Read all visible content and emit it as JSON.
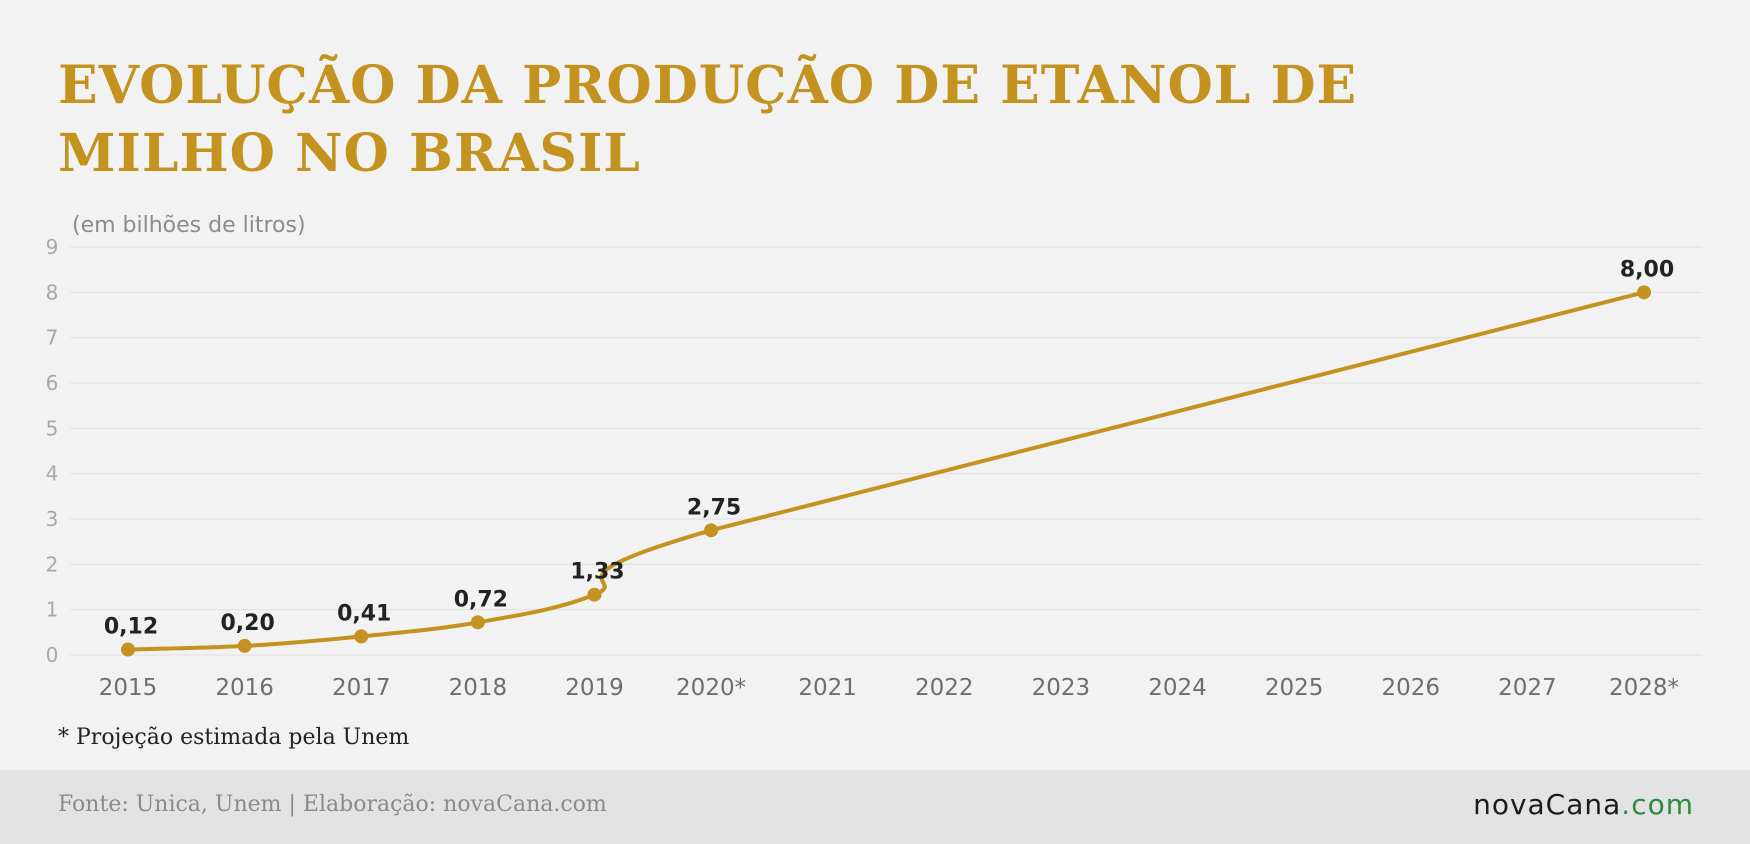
{
  "title": "EVOLUÇÃO DA PRODUÇÃO DE ETANOL DE MILHO NO BRASIL",
  "unit_label": "(em bilhões de litros)",
  "note": "* Projeção estimada pela Unem",
  "footer": {
    "source": "Fonte: Unica, Unem | Elaboração: novaCana.com",
    "logo_main": "novaCana",
    "logo_suffix": ".com"
  },
  "colors": {
    "accent": "#c4931f",
    "grid": "#e0e0e0",
    "logo_suffix": "#2e8b3e"
  },
  "chart_data": {
    "type": "line",
    "categories": [
      "2015",
      "2016",
      "2017",
      "2018",
      "2019",
      "2020*",
      "2021",
      "2022",
      "2023",
      "2024",
      "2025",
      "2026",
      "2027",
      "2028*"
    ],
    "series": [
      {
        "points": [
          {
            "x": "2015",
            "y": 0.12,
            "label": "0,12"
          },
          {
            "x": "2016",
            "y": 0.2,
            "label": "0,20"
          },
          {
            "x": "2017",
            "y": 0.41,
            "label": "0,41"
          },
          {
            "x": "2018",
            "y": 0.72,
            "label": "0,72"
          },
          {
            "x": "2019",
            "y": 1.33,
            "label": "1,33"
          },
          {
            "x": "2020*",
            "y": 2.75,
            "label": "2,75"
          },
          {
            "x": "2028*",
            "y": 8.0,
            "label": "8,00"
          }
        ]
      }
    ],
    "yticks": [
      0,
      1,
      2,
      3,
      4,
      5,
      6,
      7,
      8,
      9
    ],
    "ylim": [
      0,
      9
    ],
    "grid": true,
    "legend": false
  }
}
